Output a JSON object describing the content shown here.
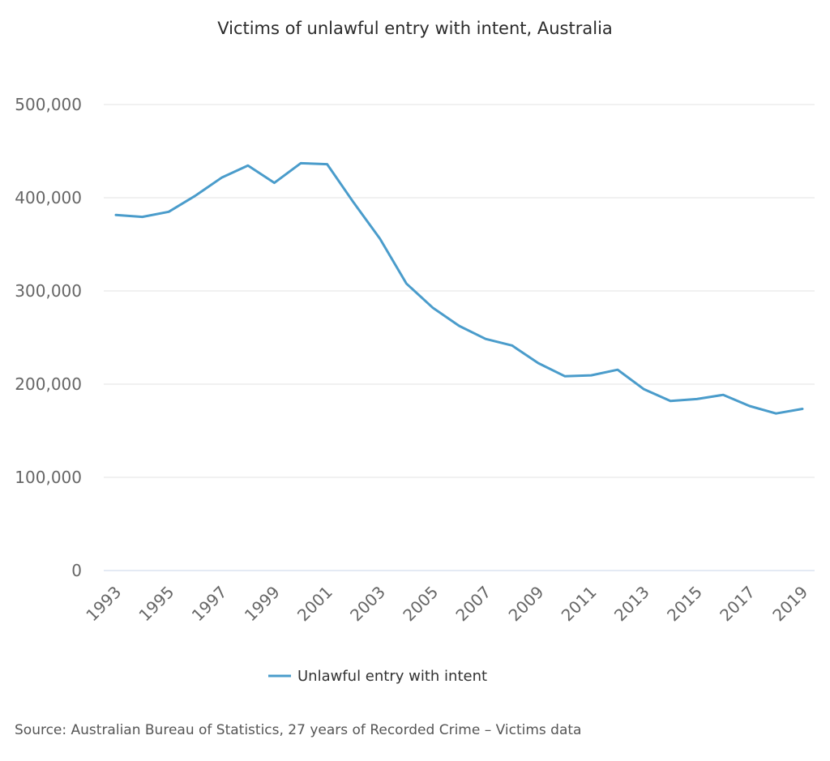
{
  "chart_data": {
    "type": "line",
    "title": "Victims of unlawful entry with intent, Australia",
    "xlabel": "",
    "ylabel": "",
    "x": [
      1993,
      1994,
      1995,
      1996,
      1997,
      1998,
      1999,
      2000,
      2001,
      2002,
      2003,
      2004,
      2005,
      2006,
      2007,
      2008,
      2009,
      2010,
      2011,
      2012,
      2013,
      2014,
      2015,
      2016,
      2017,
      2018,
      2019
    ],
    "x_tick_labels": [
      "1993",
      "1995",
      "1997",
      "1999",
      "2001",
      "2003",
      "2005",
      "2007",
      "2009",
      "2011",
      "2013",
      "2015",
      "2017",
      "2019"
    ],
    "y_tick_values": [
      0,
      100000,
      200000,
      300000,
      400000,
      500000
    ],
    "y_tick_labels": [
      "0",
      "100,000",
      "200,000",
      "300,000",
      "400,000",
      "500,000"
    ],
    "ylim": [
      0,
      500000
    ],
    "grid": true,
    "legend_position": "bottom-center",
    "series": [
      {
        "name": "Unlawful entry with intent",
        "color": "#4a9ccb",
        "values": [
          381500,
          379500,
          385000,
          402000,
          421500,
          434500,
          416000,
          437000,
          436000,
          395000,
          356000,
          308000,
          282000,
          262500,
          248500,
          241500,
          222500,
          208500,
          209500,
          215500,
          194500,
          182000,
          184000,
          188500,
          176500,
          168500,
          173500
        ]
      }
    ]
  },
  "source_note": "Source: Australian Bureau of Statistics, 27 years of Recorded Crime – Victims data"
}
